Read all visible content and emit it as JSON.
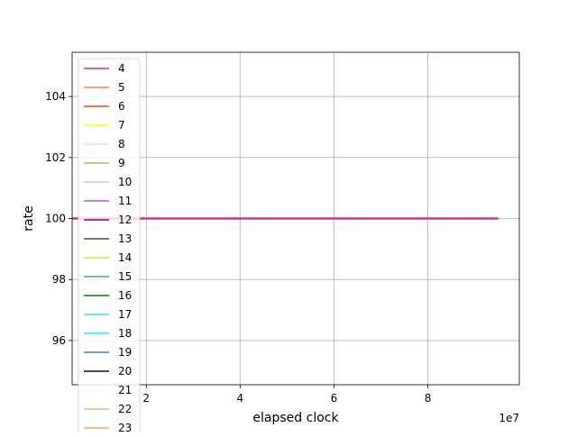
{
  "chart_data": {
    "type": "line",
    "title": "",
    "xlabel": "elapsed clock",
    "ylabel": "rate",
    "x_offset_label": "1e7",
    "x_scale": 10000000,
    "xlim": [
      0.42,
      9.95
    ],
    "ylim": [
      94.55,
      105.45
    ],
    "x_ticks": [
      2,
      4,
      6,
      8
    ],
    "y_ticks": [
      96,
      98,
      100,
      102,
      104
    ],
    "grid": true,
    "legend_position": "upper-left",
    "series": [
      {
        "name": "4",
        "color": "#e01fa8",
        "x": [
          0.42,
          9.5
        ],
        "y": [
          100,
          100
        ]
      },
      {
        "name": "5",
        "color": "#ff7f50",
        "x": [
          0.42,
          9.5
        ],
        "y": [
          100,
          100
        ]
      },
      {
        "name": "6",
        "color": "#ff4500",
        "x": [
          0.42,
          9.5
        ],
        "y": [
          100,
          100
        ]
      },
      {
        "name": "7",
        "color": "#ffff00",
        "x": [
          0.42,
          9.5
        ],
        "y": [
          100,
          100
        ]
      },
      {
        "name": "8",
        "color": "#ffdab9",
        "x": [
          0.42,
          9.5
        ],
        "y": [
          100,
          100
        ]
      },
      {
        "name": "9",
        "color": "#a9b962",
        "x": [
          0.42,
          9.5
        ],
        "y": [
          100,
          100
        ]
      },
      {
        "name": "10",
        "color": "#d8bfd8",
        "x": [
          0.42,
          9.5
        ],
        "y": [
          100,
          100
        ]
      },
      {
        "name": "11",
        "color": "#ba55d3",
        "x": [
          0.42,
          9.5
        ],
        "y": [
          100,
          100
        ]
      },
      {
        "name": "12",
        "color": "#8b008b",
        "x": [
          0.42,
          9.5
        ],
        "y": [
          100,
          100
        ]
      },
      {
        "name": "13",
        "color": "#483d8b",
        "x": [
          0.42,
          9.5
        ],
        "y": [
          100,
          100
        ]
      },
      {
        "name": "14",
        "color": "#adff2f",
        "x": [
          0.42,
          9.5
        ],
        "y": [
          100,
          100
        ]
      },
      {
        "name": "15",
        "color": "#3cb371",
        "x": [
          0.42,
          9.5
        ],
        "y": [
          100,
          100
        ]
      },
      {
        "name": "16",
        "color": "#008000",
        "x": [
          0.42,
          9.5
        ],
        "y": [
          100,
          100
        ]
      },
      {
        "name": "17",
        "color": "#40e0d0",
        "x": [
          0.42,
          9.5
        ],
        "y": [
          100,
          100
        ]
      },
      {
        "name": "18",
        "color": "#00ffff",
        "x": [
          0.42,
          9.5
        ],
        "y": [
          100,
          100
        ]
      },
      {
        "name": "19",
        "color": "#4682b4",
        "x": [
          0.42,
          9.5
        ],
        "y": [
          100,
          100
        ]
      },
      {
        "name": "20",
        "color": "#00008b",
        "x": [
          0.42,
          9.5
        ],
        "y": [
          100,
          100
        ]
      },
      {
        "name": "21",
        "color": "#fff8dc",
        "x": [
          0.42,
          9.5
        ],
        "y": [
          100,
          100
        ]
      },
      {
        "name": "22",
        "color": "#deb887",
        "x": [
          0.42,
          9.5
        ],
        "y": [
          100,
          100
        ]
      },
      {
        "name": "23",
        "color": "#f4a460",
        "x": [
          0.42,
          9.5
        ],
        "y": [
          100,
          100
        ]
      }
    ],
    "visible_line_color": "#e0307a"
  }
}
